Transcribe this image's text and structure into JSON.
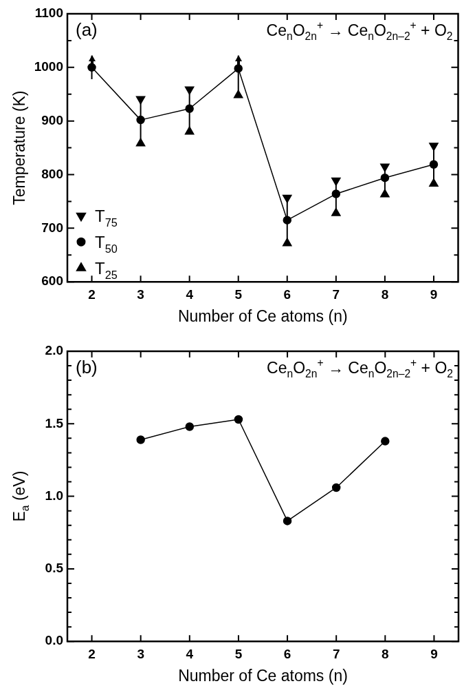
{
  "chart_data": [
    {
      "type": "line",
      "xlabel": "Number of Ce atoms (n)",
      "ylabel": "Temperature (K)",
      "x": [
        2,
        3,
        4,
        5,
        6,
        7,
        8,
        9
      ],
      "xlim": [
        1.5,
        9.5
      ],
      "xticks": [
        2,
        3,
        4,
        5,
        6,
        7,
        8,
        9
      ],
      "ylim": [
        600,
        1100
      ],
      "yticks": [
        600,
        {
          "value": 650,
          "label": null
        },
        700,
        {
          "value": 750,
          "label": null
        },
        800,
        {
          "value": 850,
          "label": null
        },
        900,
        {
          "value": 950,
          "label": null
        },
        1000,
        {
          "value": 1050,
          "label": null
        },
        1100
      ],
      "grid": false,
      "legend": "bottom left",
      "annotations": [
        "(a)",
        "Ce$_{n}$O$_{2n}$$^{+}$ → Ce$_{n}$O$_{2n–2}$$^{+}$ + O$_{2}$"
      ],
      "series": [
        {
          "name": "T$_{75}$",
          "type": "scatter",
          "marker": "triangle-down",
          "color": "#000000",
          "values": [
            null,
            941,
            959,
            null,
            757,
            789,
            815,
            854
          ]
        },
        {
          "name": "T$_{50}$",
          "type": "line",
          "marker": "circle",
          "color": "#000000",
          "values": [
            1000,
            902,
            923,
            998,
            715,
            764,
            794,
            819
          ],
          "errors": [
            [
              978,
              1022
            ],
            [
              858,
              941
            ],
            [
              880,
              959
            ],
            [
              948,
              1022
            ],
            [
              672,
              757
            ],
            [
              728,
              789
            ],
            [
              763,
              815
            ],
            [
              783,
              854
            ]
          ]
        },
        {
          "name": "T$_{25}$",
          "type": "scatter",
          "marker": "triangle",
          "color": "#000000",
          "values": [
            null,
            858,
            880,
            948,
            672,
            728,
            763,
            783
          ]
        }
      ]
    },
    {
      "type": "line",
      "xlabel": "Number of Ce atoms (n)",
      "ylabel": "E$_{a}$ (eV)",
      "x": [
        3,
        4,
        5,
        6,
        7,
        8
      ],
      "xlim": [
        1.5,
        9.5
      ],
      "xticks": [
        2,
        3,
        4,
        5,
        6,
        7,
        8,
        9
      ],
      "ylim": [
        0,
        2
      ],
      "yticks": [
        {
          "value": 0,
          "label": "0.0"
        },
        {
          "value": 0.1,
          "label": null
        },
        {
          "value": 0.2,
          "label": null
        },
        {
          "value": 0.3,
          "label": null
        },
        {
          "value": 0.4,
          "label": null
        },
        0.5,
        {
          "value": 0.6,
          "label": null
        },
        {
          "value": 0.7,
          "label": null
        },
        {
          "value": 0.8,
          "label": null
        },
        {
          "value": 0.9,
          "label": null
        },
        {
          "value": 1,
          "label": "1.0"
        },
        {
          "value": 1.1,
          "label": null
        },
        {
          "value": 1.2,
          "label": null
        },
        {
          "value": 1.3,
          "label": null
        },
        {
          "value": 1.4,
          "label": null
        },
        1.5,
        {
          "value": 1.6,
          "label": null
        },
        {
          "value": 1.7,
          "label": null
        },
        {
          "value": 1.8,
          "label": null
        },
        {
          "value": 1.9,
          "label": null
        },
        {
          "value": 2,
          "label": "2.0"
        }
      ],
      "grid": false,
      "marker": "circle",
      "color": "#000000",
      "annotations": [
        "(b)",
        "Ce$_{n}$O$_{2n}$$^{+}$ → Ce$_{n}$O$_{2n–2}$$^{+}$ + O$_{2}$"
      ],
      "values": [
        1.39,
        1.48,
        1.53,
        0.83,
        1.06,
        1.38
      ]
    }
  ]
}
